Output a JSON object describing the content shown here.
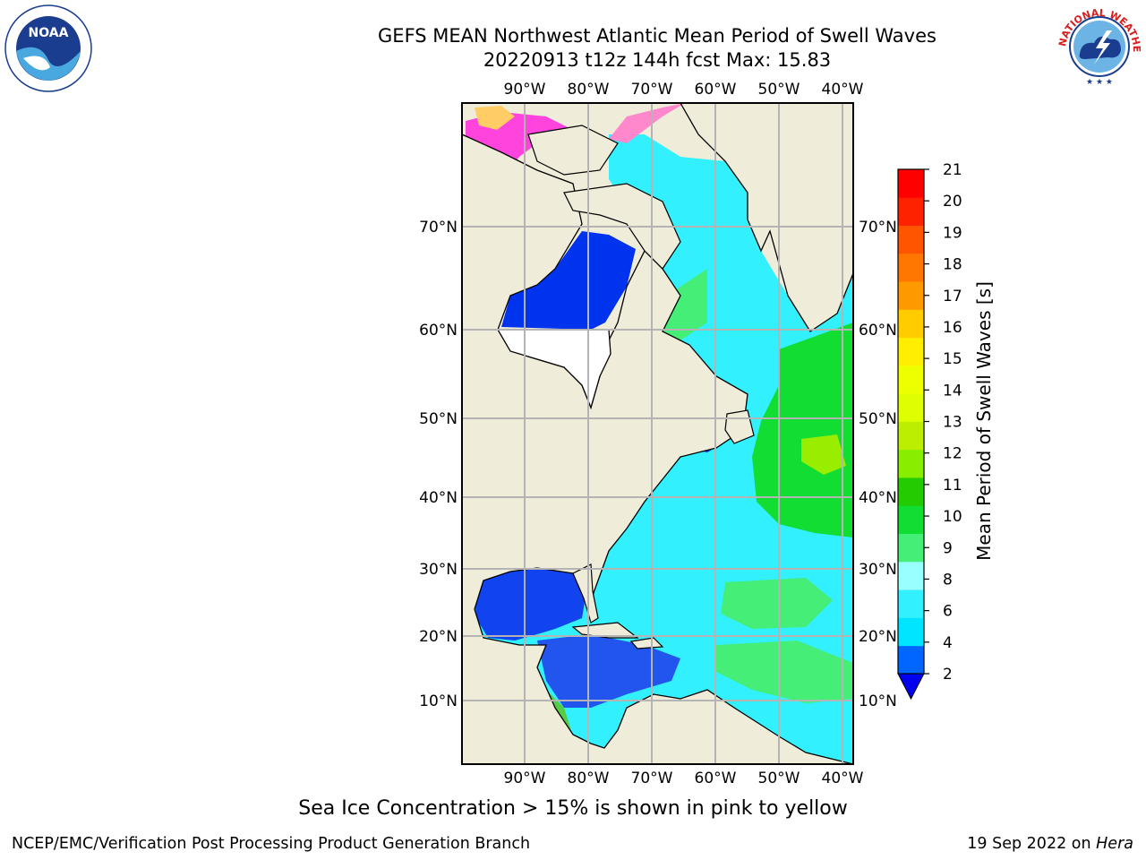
{
  "title": {
    "line1": "GEFS MEAN Northwest Atlantic Mean Period of Swell Waves",
    "line2": "20220913 t12z 144h fcst   Max: 15.83"
  },
  "map": {
    "lon_labels": [
      "90°W",
      "80°W",
      "70°W",
      "60°W",
      "50°W",
      "40°W"
    ],
    "lat_labels": [
      "70°N",
      "60°N",
      "50°N",
      "40°N",
      "30°N",
      "20°N",
      "10°N"
    ],
    "colors": {
      "land": "#efedd9",
      "coast": "#000000",
      "grid": "#b4b4b4"
    }
  },
  "colorbar": {
    "label": "Mean Period of Swell Waves [s]",
    "ticks": [
      "2",
      "4",
      "6",
      "8",
      "9",
      "10",
      "11",
      "12",
      "13",
      "14",
      "15",
      "16",
      "17",
      "18",
      "19",
      "20",
      "21"
    ],
    "colors": [
      "#0066ff",
      "#00e5ff",
      "#33f0ff",
      "#99ffff",
      "#44ee77",
      "#11dd33",
      "#22cc00",
      "#88ee00",
      "#bbee00",
      "#ddff00",
      "#eeff00",
      "#ffee00",
      "#ffcc00",
      "#ff9900",
      "#ff7700",
      "#ff5500",
      "#ff2200",
      "#ff0000"
    ],
    "extend_color": "#0000ee"
  },
  "footer": {
    "note": "Sea Ice Concentration > 15% is shown in pink to yellow",
    "left": "NCEP/EMC/Verification Post Processing Product Generation Branch",
    "right_date": "19 Sep 2022 on ",
    "right_host": "Hera"
  },
  "logos": {
    "noaa_text": "NOAA",
    "nws_text": "NATIONAL WEATHER SERVICE"
  }
}
